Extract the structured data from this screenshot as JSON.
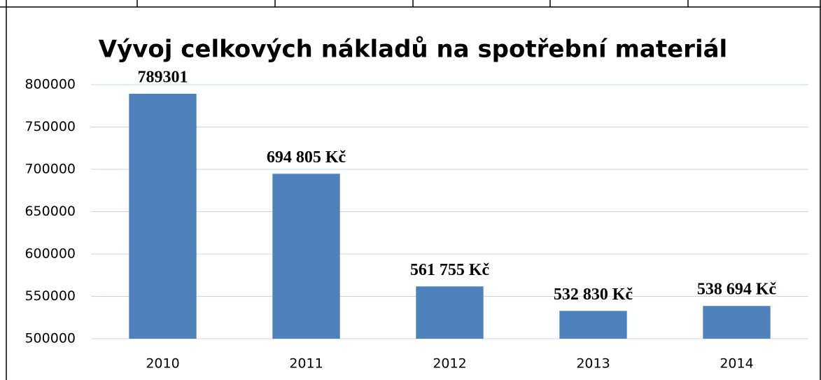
{
  "chart_data": {
    "type": "bar",
    "title": "Vývoj celkových nákladů na spotřební materiál",
    "categories": [
      "2010",
      "2011",
      "2012",
      "2013",
      "2014"
    ],
    "values": [
      789301,
      694805,
      561755,
      532830,
      538694
    ],
    "value_labels": [
      "789301",
      "694 805 Kč",
      "561 755 Kč",
      "532 830 Kč",
      "538 694 Kč"
    ],
    "color": "#4f81bd",
    "ylim": [
      500000,
      800000
    ],
    "yticks": [
      500000,
      550000,
      600000,
      650000,
      700000,
      750000,
      800000
    ],
    "grid": true
  }
}
